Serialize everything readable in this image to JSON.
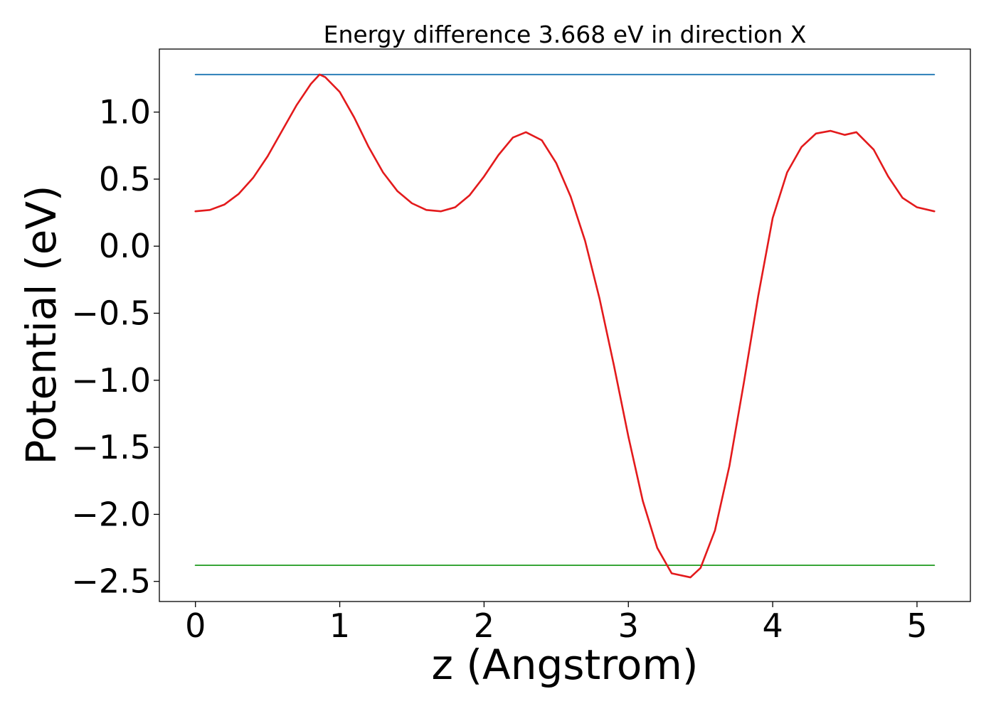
{
  "chart_data": {
    "type": "line",
    "title": "Energy difference 3.668 eV in direction X",
    "xlabel": "z (Angstrom)",
    "ylabel": "Potential (eV)",
    "xlim": [
      -0.25,
      5.37
    ],
    "ylim": [
      -2.65,
      1.47
    ],
    "xticks": [
      0,
      1,
      2,
      3,
      4,
      5
    ],
    "xtick_labels": [
      "0",
      "1",
      "2",
      "3",
      "4",
      "5"
    ],
    "yticks": [
      1.0,
      0.5,
      0.0,
      -0.5,
      -1.0,
      -1.5,
      -2.0,
      -2.5
    ],
    "ytick_labels": [
      "1.0",
      "0.5",
      "0.0",
      "−0.5",
      "−1.0",
      "−1.5",
      "−2.0",
      "−2.5"
    ],
    "grid": false,
    "series": [
      {
        "color": "#1f77b4",
        "x": [
          0,
          5.12
        ],
        "y": [
          1.28,
          1.28
        ]
      },
      {
        "color": "#2ca02c",
        "x": [
          0,
          5.12
        ],
        "y": [
          -2.38,
          -2.38
        ]
      },
      {
        "color": "#e31a1c",
        "x": [
          0,
          0.1,
          0.2,
          0.3,
          0.4,
          0.5,
          0.6,
          0.7,
          0.8,
          0.86,
          0.9,
          1.0,
          1.1,
          1.2,
          1.3,
          1.4,
          1.5,
          1.6,
          1.7,
          1.8,
          1.9,
          2.0,
          2.1,
          2.2,
          2.29,
          2.4,
          2.5,
          2.6,
          2.7,
          2.8,
          2.9,
          3.0,
          3.1,
          3.2,
          3.3,
          3.43,
          3.5,
          3.6,
          3.7,
          3.8,
          3.9,
          4.0,
          4.1,
          4.2,
          4.3,
          4.4,
          4.5,
          4.58,
          4.7,
          4.8,
          4.9,
          5.0,
          5.12
        ],
        "y": [
          0.26,
          0.27,
          0.31,
          0.39,
          0.51,
          0.67,
          0.86,
          1.05,
          1.21,
          1.28,
          1.26,
          1.15,
          0.96,
          0.74,
          0.55,
          0.41,
          0.32,
          0.27,
          0.26,
          0.29,
          0.38,
          0.52,
          0.68,
          0.81,
          0.85,
          0.79,
          0.62,
          0.37,
          0.04,
          -0.39,
          -0.89,
          -1.42,
          -1.9,
          -2.25,
          -2.44,
          -2.47,
          -2.4,
          -2.12,
          -1.64,
          -1.02,
          -0.37,
          0.21,
          0.55,
          0.74,
          0.84,
          0.86,
          0.83,
          0.85,
          0.72,
          0.52,
          0.36,
          0.29,
          0.26
        ]
      }
    ]
  }
}
